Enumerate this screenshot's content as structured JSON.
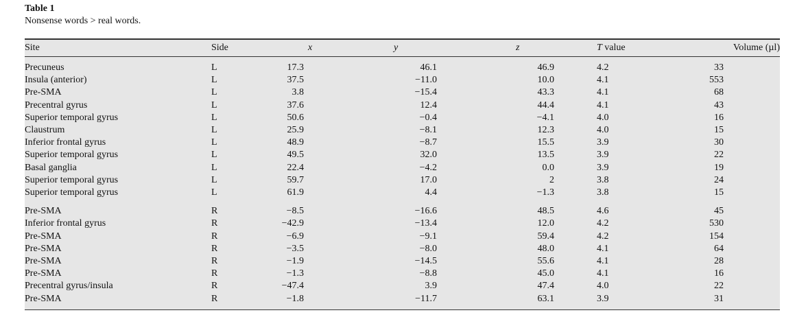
{
  "table": {
    "title": "Table 1",
    "caption": "Nonsense words > real words.",
    "headers": {
      "site": "Site",
      "side": "Side",
      "x": "x",
      "y": "y",
      "z": "z",
      "t_italic": "T",
      "t_rest": " value",
      "volume": "Volume (µl)"
    },
    "groups": [
      [
        [
          "Precuneus",
          "L",
          "17.3",
          "46.1",
          "46.9",
          "4.2",
          "33"
        ],
        [
          "Insula (anterior)",
          "L",
          "37.5",
          "−11.0",
          "10.0",
          "4.1",
          "553"
        ],
        [
          "Pre-SMA",
          "L",
          "3.8",
          "−15.4",
          "43.3",
          "4.1",
          "68"
        ],
        [
          "Precentral gyrus",
          "L",
          "37.6",
          "12.4",
          "44.4",
          "4.1",
          "43"
        ],
        [
          "Superior temporal gyrus",
          "L",
          "50.6",
          "−0.4",
          "−4.1",
          "4.0",
          "16"
        ],
        [
          "Claustrum",
          "L",
          "25.9",
          "−8.1",
          "12.3",
          "4.0",
          "15"
        ],
        [
          "Inferior frontal gyrus",
          "L",
          "48.9",
          "−8.7",
          "15.5",
          "3.9",
          "30"
        ],
        [
          "Superior temporal gyrus",
          "L",
          "49.5",
          "32.0",
          "13.5",
          "3.9",
          "22"
        ],
        [
          "Basal ganglia",
          "L",
          "22.4",
          "−4.2",
          "0.0",
          "3.9",
          "19"
        ],
        [
          "Superior temporal gyrus",
          "L",
          "59.7",
          "17.0",
          "2",
          "3.8",
          "24"
        ],
        [
          "Superior temporal gyrus",
          "L",
          "61.9",
          "4.4",
          "−1.3",
          "3.8",
          "15"
        ]
      ],
      [
        [
          "Pre-SMA",
          "R",
          "−8.5",
          "−16.6",
          "48.5",
          "4.6",
          "45"
        ],
        [
          "Inferior frontal gyrus",
          "R",
          "−42.9",
          "−13.4",
          "12.0",
          "4.2",
          "530"
        ],
        [
          "Pre-SMA",
          "R",
          "−6.9",
          "−9.1",
          "59.4",
          "4.2",
          "154"
        ],
        [
          "Pre-SMA",
          "R",
          "−3.5",
          "−8.0",
          "48.0",
          "4.1",
          "64"
        ],
        [
          "Pre-SMA",
          "R",
          "−1.9",
          "−14.5",
          "55.6",
          "4.1",
          "28"
        ],
        [
          "Pre-SMA",
          "R",
          "−1.3",
          "−8.8",
          "45.0",
          "4.1",
          "16"
        ],
        [
          "Precentral gyrus/insula",
          "R",
          "−47.4",
          "3.9",
          "47.4",
          "4.0",
          "22"
        ],
        [
          "Pre-SMA",
          "R",
          "−1.8",
          "−11.7",
          "63.1",
          "3.9",
          "31"
        ]
      ]
    ]
  }
}
